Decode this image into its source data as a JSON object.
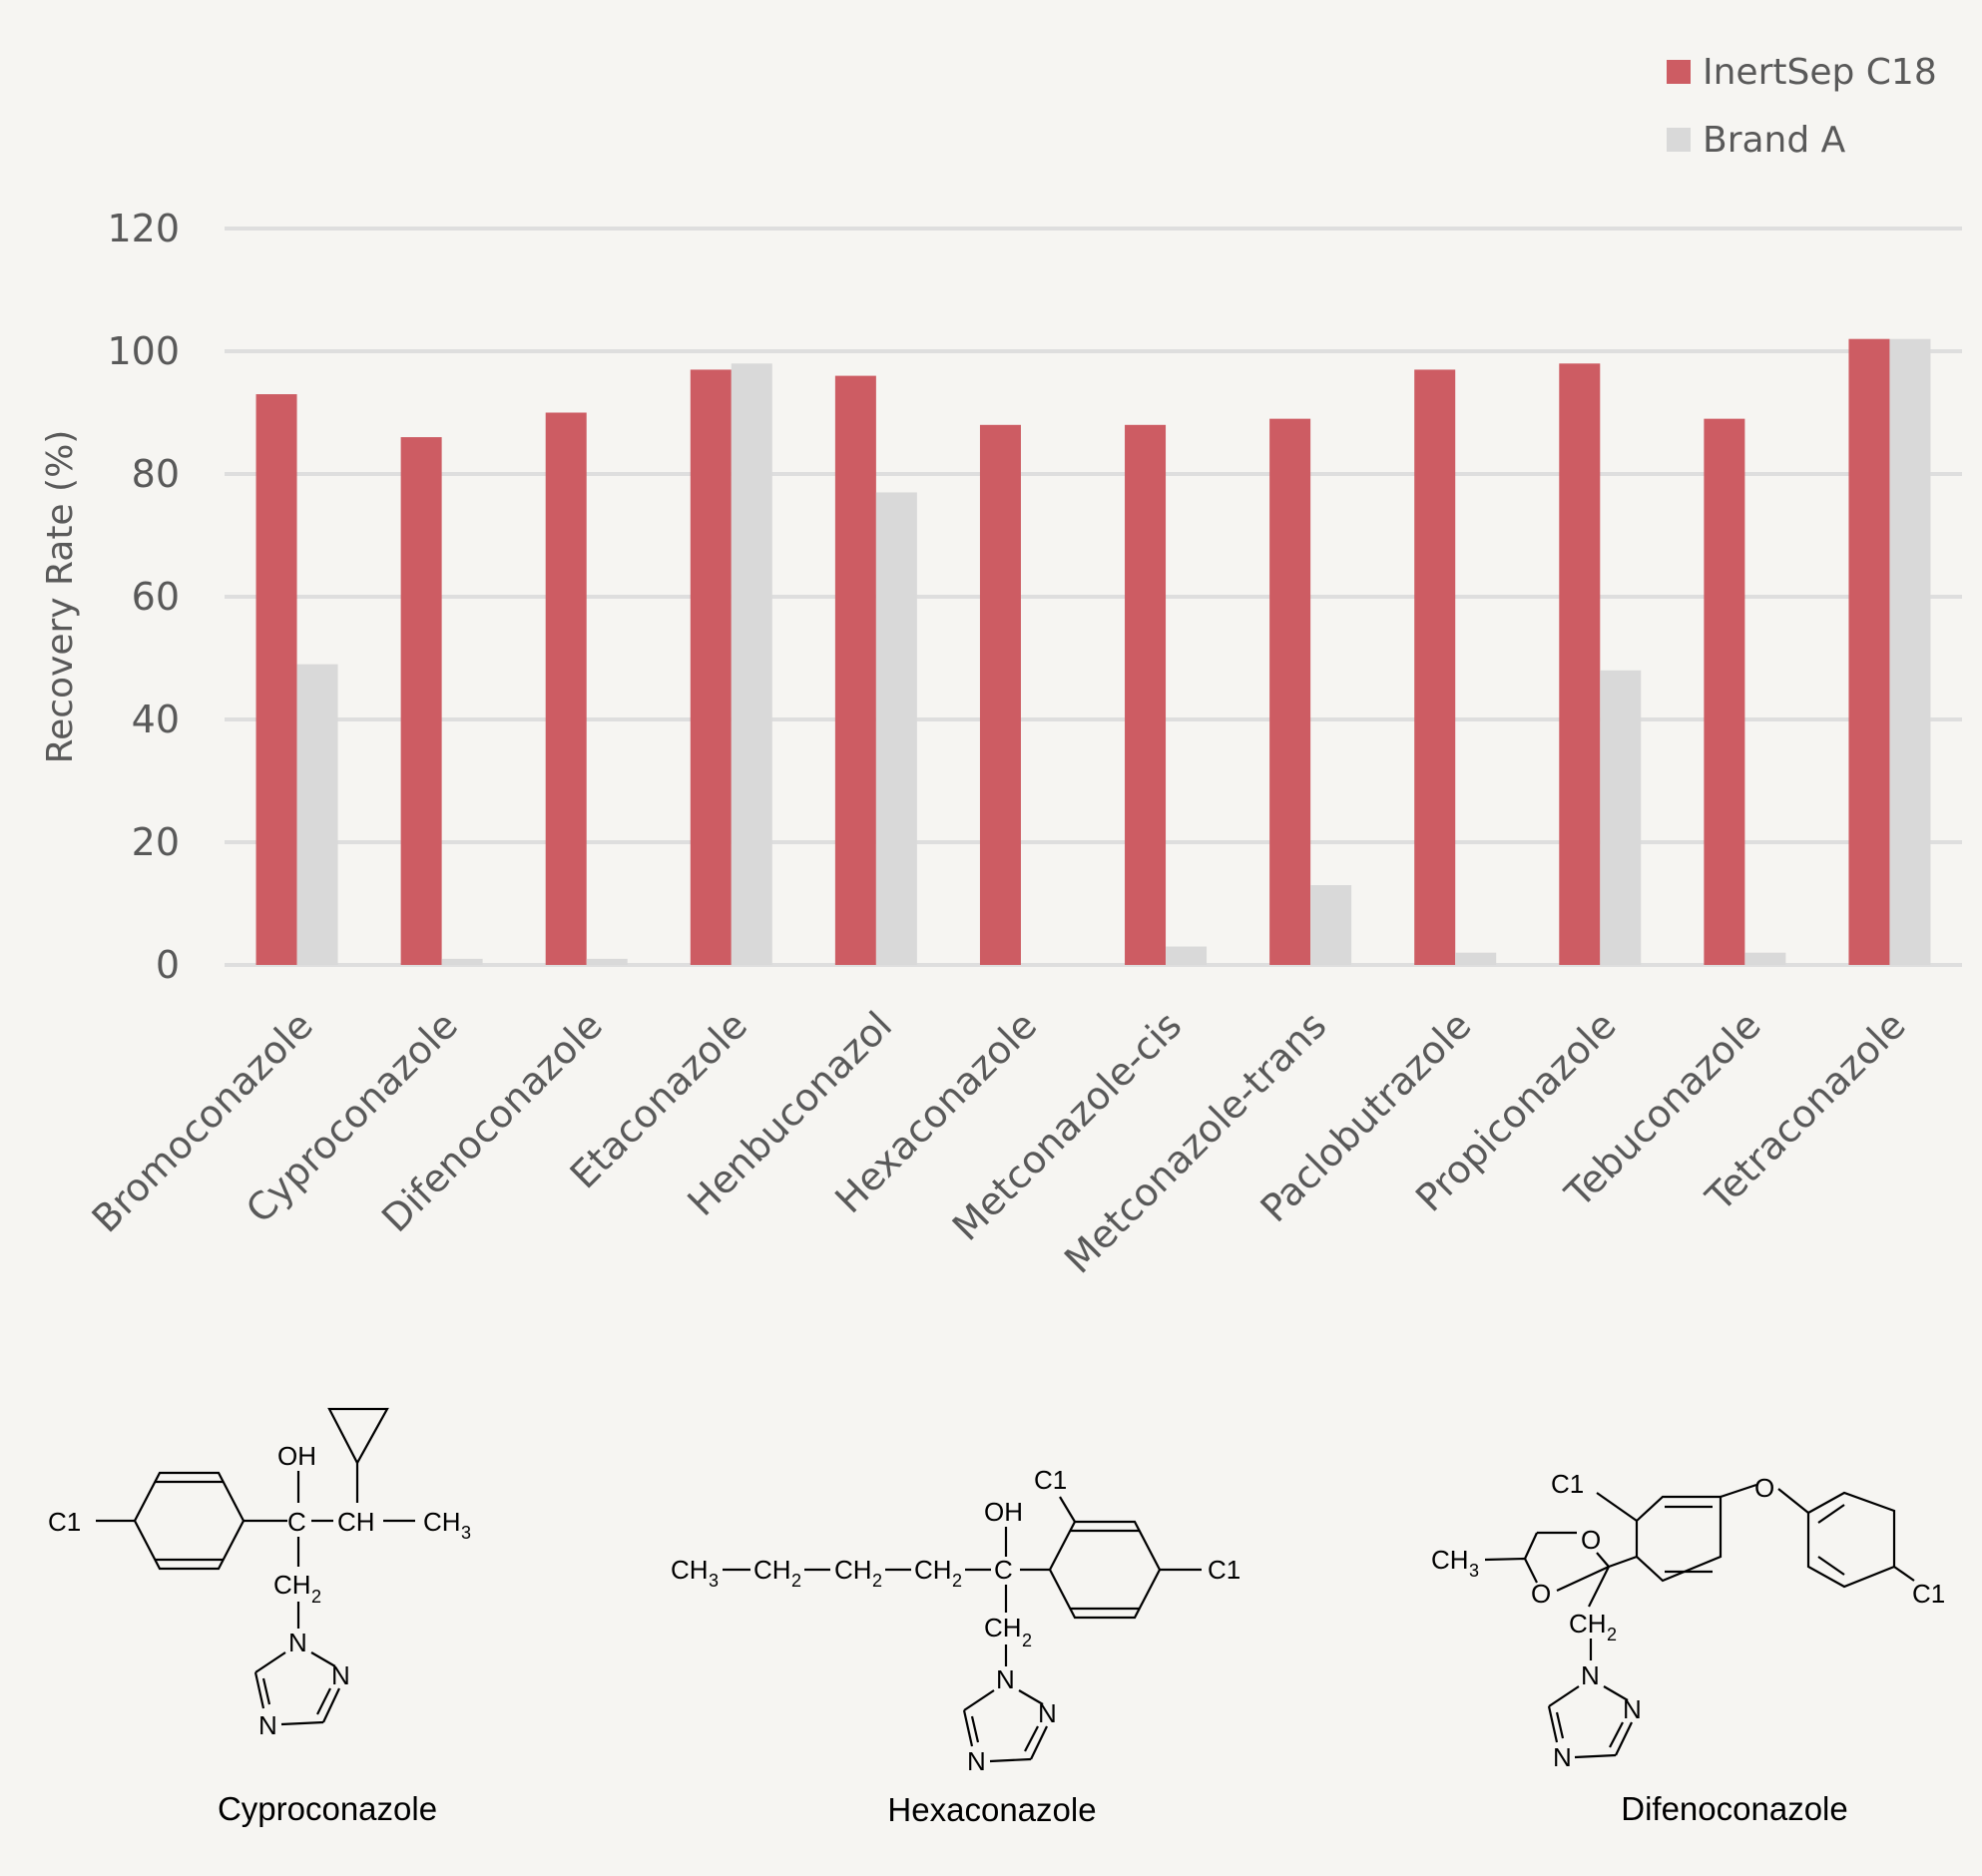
{
  "colors": {
    "series_0": "#cd5c63",
    "series_1": "#d9d9d9",
    "gridline": "#dedede",
    "text": "#595959"
  },
  "chart_data": {
    "type": "bar",
    "title": "",
    "xlabel": "",
    "ylabel": "Recovery Rate (%)",
    "ylim": [
      0,
      120
    ],
    "yticks": [
      0,
      20,
      40,
      60,
      80,
      100,
      120
    ],
    "grid": true,
    "legend_position": "top-right",
    "categories": [
      "Bromoconazole",
      "Cyproconazole",
      "Difenoconazole",
      "Etaconazole",
      "Henbuconazol",
      "Hexaconazole",
      "Metconazole-cis",
      "Metconazole-trans",
      "Paclobutrazole",
      "Propiconazole",
      "Tebuconazole",
      "Tetraconazole"
    ],
    "series": [
      {
        "name": "InertSep C18",
        "values": [
          93,
          86,
          90,
          97,
          96,
          88,
          88,
          89,
          97,
          98,
          89,
          102
        ]
      },
      {
        "name": "Brand A",
        "values": [
          49,
          1,
          1,
          98,
          77,
          0,
          3,
          13,
          2,
          48,
          2,
          102
        ]
      }
    ]
  },
  "structures": {
    "cyproconazole": {
      "name": "Cyproconazole",
      "cl": "C1",
      "oh": "OH",
      "c": "C",
      "ch": "CH",
      "ch3": "CH",
      "sub3": "3",
      "ch2": "CH",
      "sub2": "2",
      "n1": "N",
      "n2": "N",
      "n3": "N"
    },
    "hexaconazole": {
      "name": "Hexaconazole",
      "ch3": "CH",
      "sub3": "3",
      "ch2": "CH",
      "sub2": "2",
      "c": "C",
      "oh": "OH",
      "cl1": "C1",
      "cl2": "C1",
      "n1": "N",
      "n2": "N",
      "n3": "N"
    },
    "difenoconazole": {
      "name": "Difenoconazole",
      "cl1": "C1",
      "cl2": "C1",
      "o1": "O",
      "o2": "O",
      "o3": "O",
      "ch3": "CH",
      "sub3": "3",
      "ch2": "CH",
      "sub2": "2",
      "n1": "N",
      "n2": "N",
      "n3": "N"
    }
  }
}
